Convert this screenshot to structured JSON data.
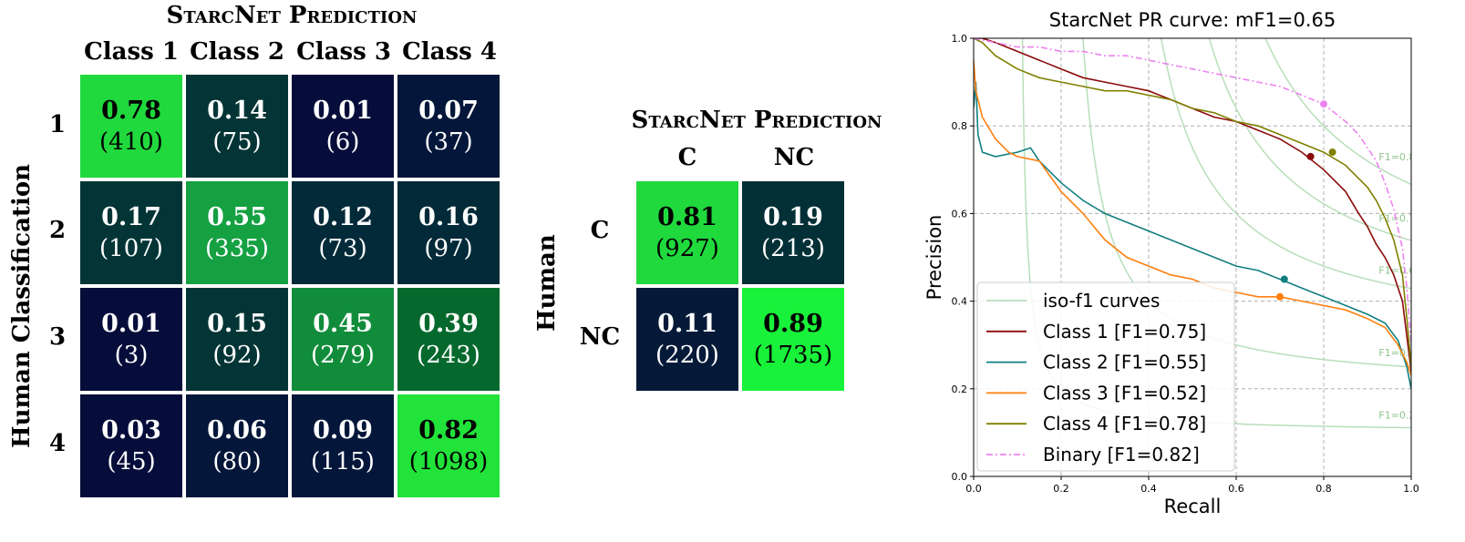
{
  "chart_data": [
    {
      "type": "heatmap",
      "title": "StarcNet Prediction",
      "ylabel": "Human Classification",
      "col_labels": [
        "Class 1",
        "Class 2",
        "Class 3",
        "Class 4"
      ],
      "row_labels": [
        "1",
        "2",
        "3",
        "4"
      ],
      "values": [
        [
          0.78,
          0.14,
          0.01,
          0.07
        ],
        [
          0.17,
          0.55,
          0.12,
          0.16
        ],
        [
          0.01,
          0.15,
          0.45,
          0.39
        ],
        [
          0.03,
          0.06,
          0.09,
          0.82
        ]
      ],
      "value_text": [
        [
          "0.78",
          "0.14",
          "0.01",
          "0.07"
        ],
        [
          "0.17",
          "0.55",
          "0.12",
          "0.16"
        ],
        [
          "0.01",
          "0.15",
          "0.45",
          "0.39"
        ],
        [
          "0.03",
          "0.06",
          "0.09",
          "0.82"
        ]
      ],
      "counts": [
        [
          "(410)",
          "(75)",
          "(6)",
          "(37)"
        ],
        [
          "(107)",
          "(335)",
          "(73)",
          "(97)"
        ],
        [
          "(3)",
          "(92)",
          "(279)",
          "(243)"
        ],
        [
          "(45)",
          "(80)",
          "(115)",
          "(1098)"
        ]
      ],
      "colors": [
        [
          "#20d93d",
          "#043536",
          "#060d3a",
          "#04173a"
        ],
        [
          "#043536",
          "#15a042",
          "#022a38",
          "#022a38"
        ],
        [
          "#060d3a",
          "#043536",
          "#118c3b",
          "#05692e"
        ],
        [
          "#060d3a",
          "#04173a",
          "#04173a",
          "#21e339"
        ]
      ]
    },
    {
      "type": "heatmap",
      "title": "StarcNet Prediction",
      "ylabel": "Human",
      "col_labels": [
        "C",
        "NC"
      ],
      "row_labels": [
        "C",
        "NC"
      ],
      "values": [
        [
          0.81,
          0.19
        ],
        [
          0.11,
          0.89
        ]
      ],
      "value_text": [
        [
          "0.81",
          "0.19"
        ],
        [
          "0.11",
          "0.89"
        ]
      ],
      "counts": [
        [
          "(927)",
          "(213)"
        ],
        [
          "(220)",
          "(1735)"
        ]
      ],
      "colors": [
        [
          "#20d93d",
          "#033036"
        ],
        [
          "#051a38",
          "#18f23a"
        ]
      ]
    },
    {
      "type": "line",
      "title": "StarcNet PR curve: mF1=0.65",
      "xlabel": "Recall",
      "ylabel": "Precision",
      "xlim": [
        0,
        1
      ],
      "ylim": [
        0,
        1
      ],
      "xticks": [
        "0.0",
        "0.2",
        "0.4",
        "0.6",
        "0.8",
        "1.0"
      ],
      "yticks": [
        "0.0",
        "0.2",
        "0.4",
        "0.6",
        "0.8",
        "1.0"
      ],
      "grid": true,
      "legend_loc": "lower-left",
      "iso_f1_label": "iso-f1 curves",
      "iso_f1_color": "#b8deb8",
      "iso_f1_levels": [
        {
          "f1": 0.2,
          "label": "F1=0.2"
        },
        {
          "f1": 0.4,
          "label": "F1=0.4"
        },
        {
          "f1": 0.6,
          "label": "F1=0.6"
        },
        {
          "f1": 0.7,
          "label": "F1=0.7"
        },
        {
          "f1": 0.8,
          "label": "F1=0.8"
        }
      ],
      "series": [
        {
          "name": "Class 1 [F1=0.75]",
          "color": "#8b0a0a",
          "dash": "solid",
          "marker": [
            0.77,
            0.73
          ],
          "points": [
            [
              0.0,
              1.0
            ],
            [
              0.02,
              1.0
            ],
            [
              0.05,
              0.99
            ],
            [
              0.1,
              0.97
            ],
            [
              0.15,
              0.95
            ],
            [
              0.2,
              0.93
            ],
            [
              0.25,
              0.91
            ],
            [
              0.3,
              0.9
            ],
            [
              0.35,
              0.89
            ],
            [
              0.4,
              0.88
            ],
            [
              0.45,
              0.86
            ],
            [
              0.5,
              0.84
            ],
            [
              0.55,
              0.82
            ],
            [
              0.6,
              0.81
            ],
            [
              0.65,
              0.79
            ],
            [
              0.7,
              0.77
            ],
            [
              0.75,
              0.74
            ],
            [
              0.8,
              0.7
            ],
            [
              0.85,
              0.65
            ],
            [
              0.88,
              0.6
            ],
            [
              0.9,
              0.57
            ],
            [
              0.92,
              0.53
            ],
            [
              0.94,
              0.5
            ],
            [
              0.96,
              0.46
            ],
            [
              0.98,
              0.4
            ],
            [
              0.99,
              0.32
            ],
            [
              1.0,
              0.24
            ]
          ]
        },
        {
          "name": "Class 2 [F1=0.55]",
          "color": "#117f80",
          "dash": "solid",
          "marker": [
            0.71,
            0.45
          ],
          "points": [
            [
              0.0,
              0.84
            ],
            [
              0.005,
              0.9
            ],
            [
              0.01,
              0.78
            ],
            [
              0.02,
              0.74
            ],
            [
              0.05,
              0.73
            ],
            [
              0.1,
              0.74
            ],
            [
              0.13,
              0.75
            ],
            [
              0.15,
              0.72
            ],
            [
              0.2,
              0.67
            ],
            [
              0.25,
              0.63
            ],
            [
              0.3,
              0.6
            ],
            [
              0.35,
              0.58
            ],
            [
              0.4,
              0.56
            ],
            [
              0.45,
              0.54
            ],
            [
              0.5,
              0.52
            ],
            [
              0.55,
              0.5
            ],
            [
              0.6,
              0.48
            ],
            [
              0.65,
              0.47
            ],
            [
              0.7,
              0.45
            ],
            [
              0.75,
              0.43
            ],
            [
              0.8,
              0.41
            ],
            [
              0.85,
              0.39
            ],
            [
              0.9,
              0.37
            ],
            [
              0.94,
              0.35
            ],
            [
              0.97,
              0.31
            ],
            [
              0.99,
              0.25
            ],
            [
              1.0,
              0.2
            ]
          ]
        },
        {
          "name": "Class 3 [F1=0.52]",
          "color": "#ff7f0e",
          "dash": "solid",
          "marker": [
            0.7,
            0.41
          ],
          "points": [
            [
              0.0,
              0.95
            ],
            [
              0.005,
              0.88
            ],
            [
              0.01,
              0.86
            ],
            [
              0.02,
              0.82
            ],
            [
              0.05,
              0.77
            ],
            [
              0.08,
              0.74
            ],
            [
              0.1,
              0.73
            ],
            [
              0.15,
              0.72
            ],
            [
              0.2,
              0.65
            ],
            [
              0.25,
              0.6
            ],
            [
              0.3,
              0.54
            ],
            [
              0.35,
              0.5
            ],
            [
              0.4,
              0.48
            ],
            [
              0.45,
              0.46
            ],
            [
              0.5,
              0.45
            ],
            [
              0.55,
              0.43
            ],
            [
              0.6,
              0.42
            ],
            [
              0.65,
              0.41
            ],
            [
              0.7,
              0.41
            ],
            [
              0.75,
              0.4
            ],
            [
              0.8,
              0.39
            ],
            [
              0.85,
              0.38
            ],
            [
              0.9,
              0.36
            ],
            [
              0.94,
              0.34
            ],
            [
              0.97,
              0.3
            ],
            [
              0.99,
              0.26
            ],
            [
              1.0,
              0.23
            ]
          ]
        },
        {
          "name": "Class 4 [F1=0.78]",
          "color": "#808000",
          "dash": "solid",
          "marker": [
            0.82,
            0.74
          ],
          "points": [
            [
              0.0,
              1.0
            ],
            [
              0.02,
              0.99
            ],
            [
              0.05,
              0.96
            ],
            [
              0.1,
              0.93
            ],
            [
              0.15,
              0.91
            ],
            [
              0.2,
              0.9
            ],
            [
              0.25,
              0.89
            ],
            [
              0.3,
              0.88
            ],
            [
              0.35,
              0.88
            ],
            [
              0.4,
              0.87
            ],
            [
              0.45,
              0.86
            ],
            [
              0.5,
              0.84
            ],
            [
              0.55,
              0.83
            ],
            [
              0.6,
              0.81
            ],
            [
              0.65,
              0.8
            ],
            [
              0.7,
              0.78
            ],
            [
              0.75,
              0.76
            ],
            [
              0.8,
              0.74
            ],
            [
              0.85,
              0.71
            ],
            [
              0.88,
              0.68
            ],
            [
              0.9,
              0.66
            ],
            [
              0.92,
              0.63
            ],
            [
              0.94,
              0.59
            ],
            [
              0.96,
              0.54
            ],
            [
              0.98,
              0.46
            ],
            [
              0.99,
              0.36
            ],
            [
              1.0,
              0.25
            ]
          ]
        },
        {
          "name": "Binary [F1=0.82]",
          "color": "#ee82ee",
          "dash": "dashdot",
          "marker": [
            0.8,
            0.85
          ],
          "points": [
            [
              0.0,
              1.0
            ],
            [
              0.05,
              0.99
            ],
            [
              0.1,
              0.98
            ],
            [
              0.15,
              0.98
            ],
            [
              0.2,
              0.97
            ],
            [
              0.25,
              0.97
            ],
            [
              0.3,
              0.96
            ],
            [
              0.35,
              0.96
            ],
            [
              0.4,
              0.95
            ],
            [
              0.45,
              0.94
            ],
            [
              0.5,
              0.93
            ],
            [
              0.55,
              0.92
            ],
            [
              0.6,
              0.91
            ],
            [
              0.65,
              0.9
            ],
            [
              0.7,
              0.89
            ],
            [
              0.75,
              0.87
            ],
            [
              0.8,
              0.85
            ],
            [
              0.85,
              0.81
            ],
            [
              0.88,
              0.78
            ],
            [
              0.9,
              0.75
            ],
            [
              0.92,
              0.72
            ],
            [
              0.94,
              0.67
            ],
            [
              0.96,
              0.61
            ],
            [
              0.98,
              0.52
            ],
            [
              0.99,
              0.43
            ],
            [
              1.0,
              0.3
            ]
          ]
        }
      ]
    }
  ]
}
